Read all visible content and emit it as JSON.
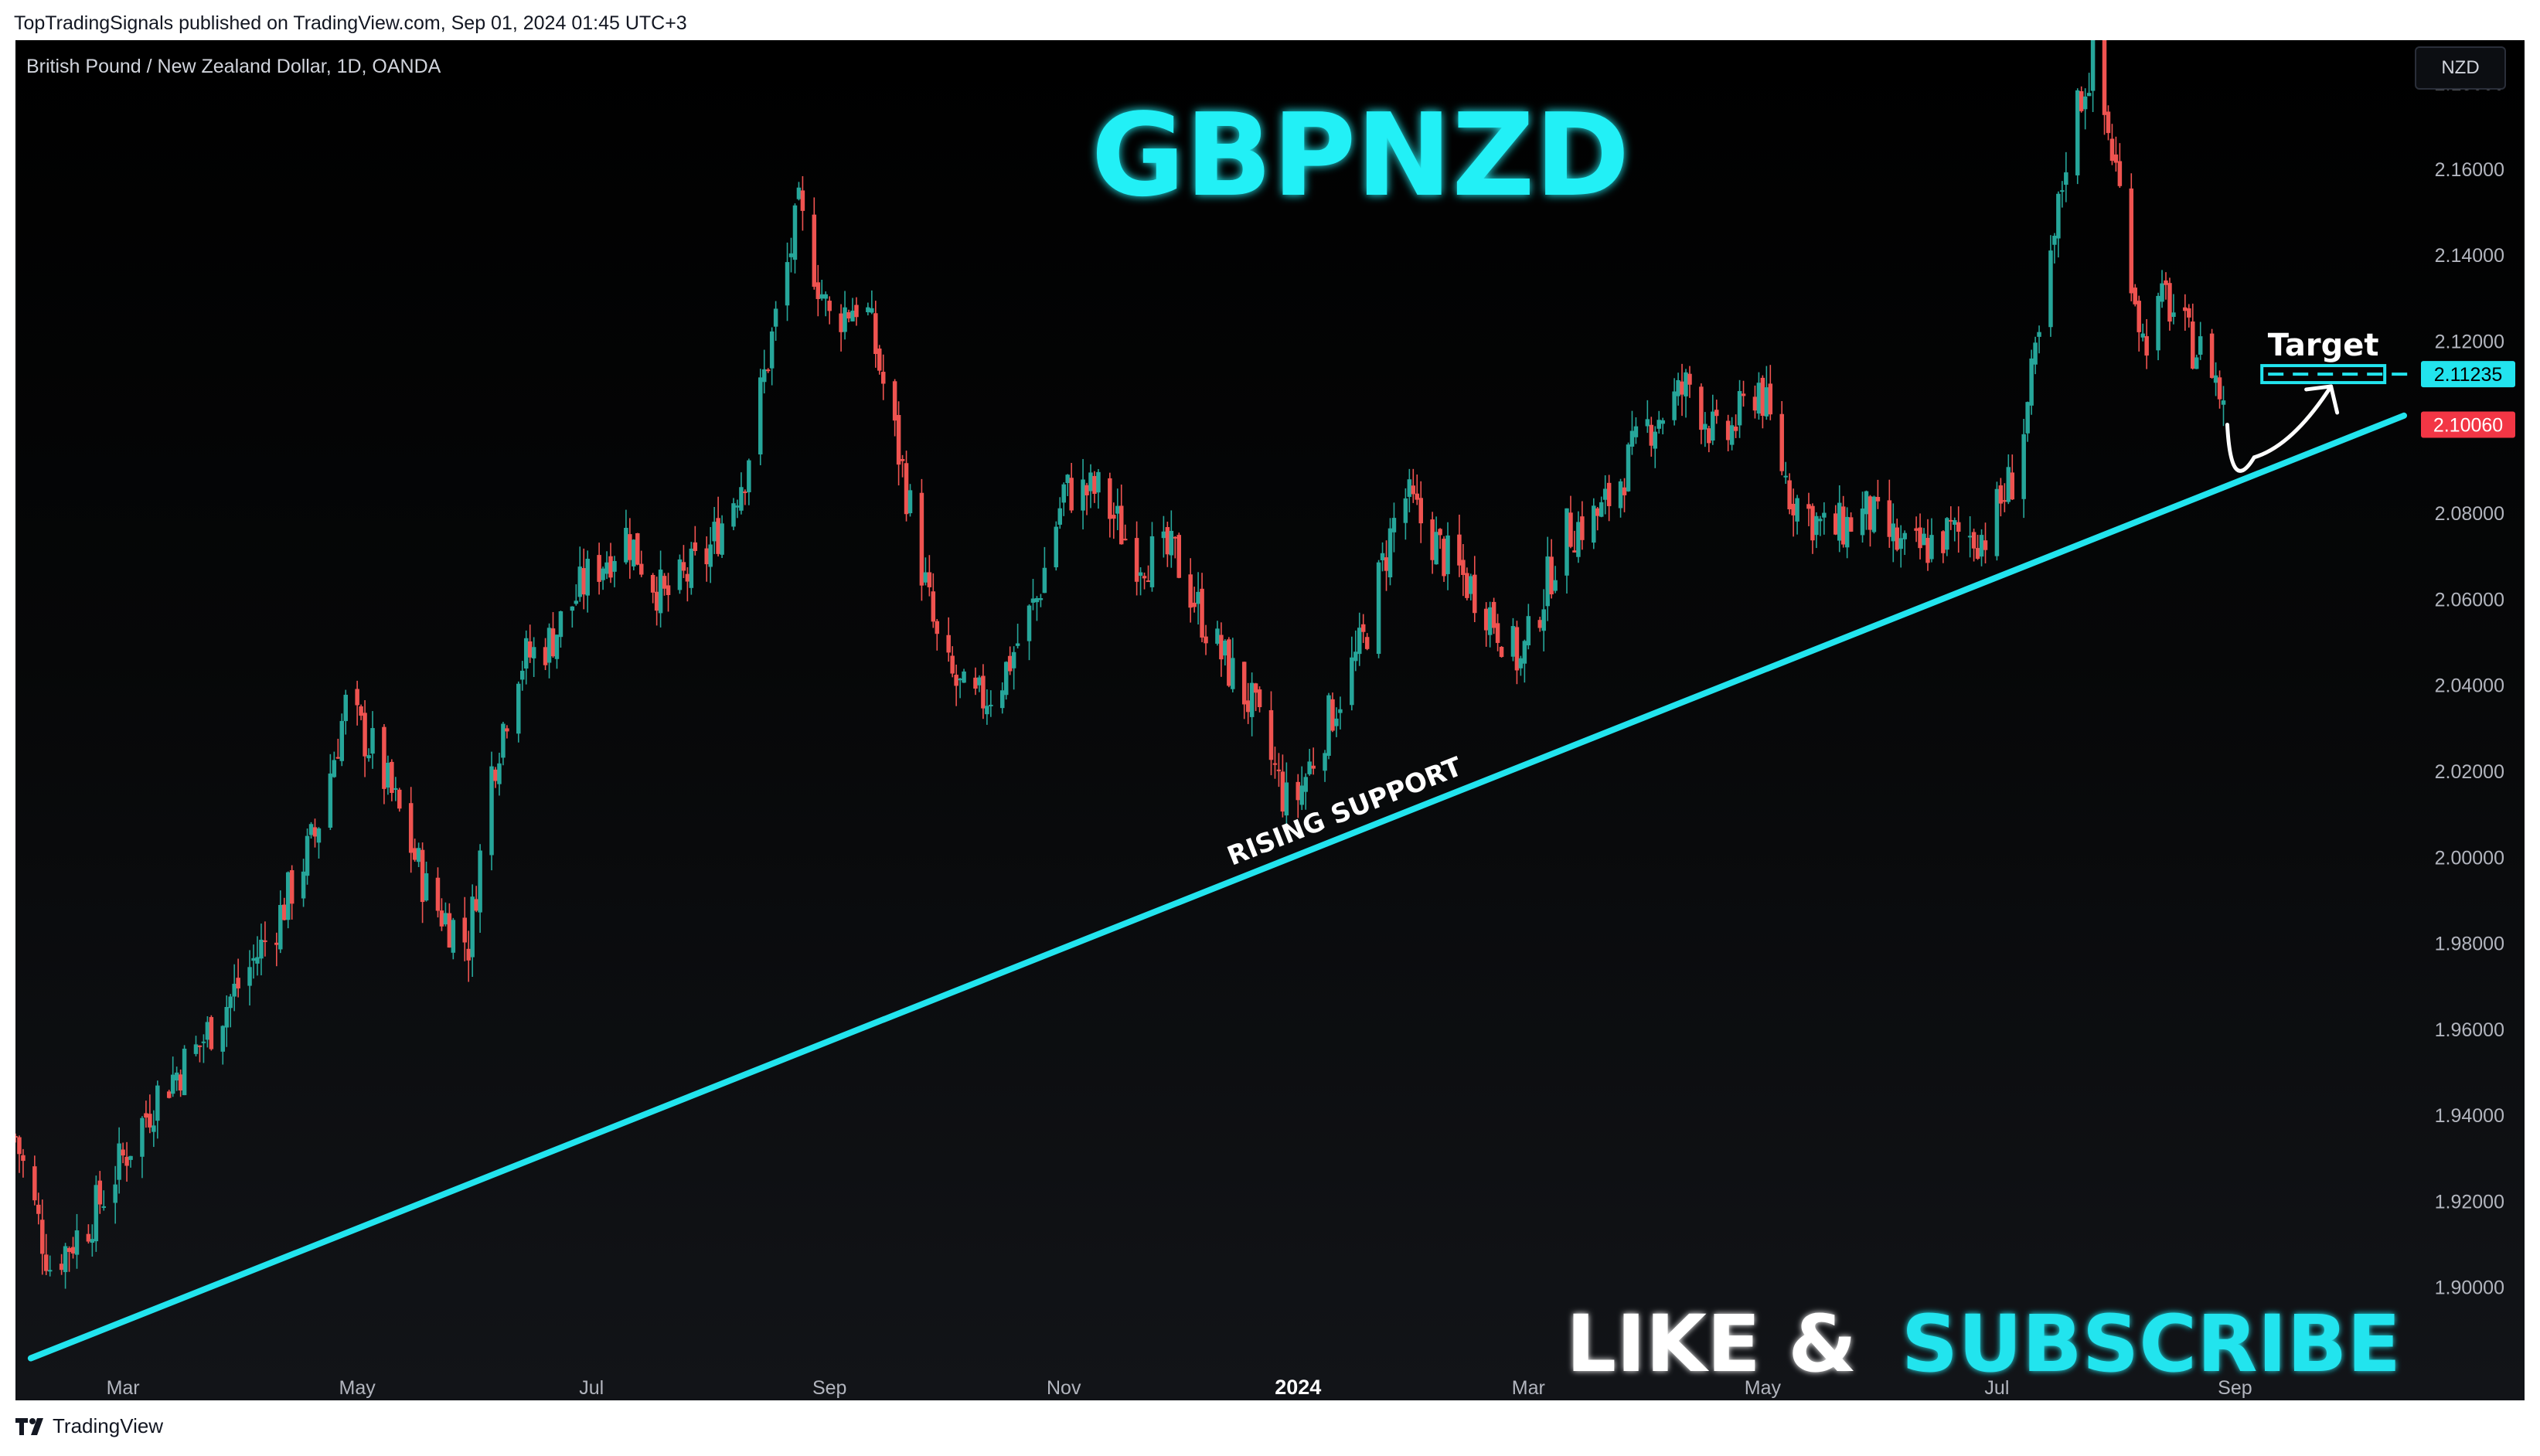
{
  "header": {
    "published_text": "TopTradingSignals published on TradingView.com, Sep 01, 2024 01:45 UTC+3"
  },
  "chart_header": {
    "symbol_text": "British Pound / New Zealand Dollar, 1D, OANDA",
    "currency_button": "NZD"
  },
  "annotations": {
    "title": "GBPNZD",
    "trendline_label": "RISING SUPPORT",
    "target_label": "Target",
    "cta_part1": "LIKE &",
    "cta_part2": "SUBSCRIBE"
  },
  "footer": {
    "brand": "TradingView"
  },
  "colors": {
    "background": "#000000",
    "up_candle": "#26a69a",
    "down_candle": "#ef5350",
    "accent_cyan": "#22e4ee",
    "axis_text": "#b2b5be",
    "current_price_badge": "#f23645",
    "target_badge": "#22e4ee"
  },
  "chart_data": {
    "type": "candlestick",
    "title": "GBPNZD",
    "symbol": "British Pound / New Zealand Dollar",
    "interval": "1D",
    "source": "OANDA",
    "ylim": [
      1.88,
      2.19
    ],
    "y_ticks": [
      1.9,
      1.92,
      1.94,
      1.96,
      1.98,
      2.0,
      2.02,
      2.04,
      2.06,
      2.08,
      2.1,
      2.12,
      2.14,
      2.16,
      2.18
    ],
    "y_tick_labels": [
      "1.90000",
      "1.92000",
      "1.94000",
      "1.96000",
      "1.98000",
      "2.00000",
      "2.02000",
      "2.04000",
      "2.06000",
      "2.08000",
      "2.10000",
      "2.12000",
      "2.14000",
      "2.16000",
      "2.18000"
    ],
    "x_range": [
      "2023-02-01",
      "2024-10-15"
    ],
    "x_ticks": [
      {
        "date": "2023-03-01",
        "label": "Mar"
      },
      {
        "date": "2023-05-01",
        "label": "May"
      },
      {
        "date": "2023-07-01",
        "label": "Jul"
      },
      {
        "date": "2023-09-01",
        "label": "Sep"
      },
      {
        "date": "2023-11-01",
        "label": "Nov"
      },
      {
        "date": "2024-01-01",
        "label": "2024"
      },
      {
        "date": "2024-03-01",
        "label": "Mar"
      },
      {
        "date": "2024-05-01",
        "label": "May"
      },
      {
        "date": "2024-07-01",
        "label": "Jul"
      },
      {
        "date": "2024-09-01",
        "label": "Sep"
      }
    ],
    "price_path": [
      {
        "date": "2023-02-01",
        "close": 1.935
      },
      {
        "date": "2023-02-10",
        "close": 1.905
      },
      {
        "date": "2023-02-20",
        "close": 1.915
      },
      {
        "date": "2023-03-01",
        "close": 1.93
      },
      {
        "date": "2023-03-10",
        "close": 1.945
      },
      {
        "date": "2023-03-20",
        "close": 1.955
      },
      {
        "date": "2023-03-31",
        "close": 1.97
      },
      {
        "date": "2023-04-10",
        "close": 1.985
      },
      {
        "date": "2023-04-20",
        "close": 2.005
      },
      {
        "date": "2023-04-28",
        "close": 2.035
      },
      {
        "date": "2023-05-05",
        "close": 2.025
      },
      {
        "date": "2023-05-12",
        "close": 2.01
      },
      {
        "date": "2023-05-20",
        "close": 1.99
      },
      {
        "date": "2023-05-30",
        "close": 1.98
      },
      {
        "date": "2023-06-05",
        "close": 2.02
      },
      {
        "date": "2023-06-12",
        "close": 2.045
      },
      {
        "date": "2023-06-20",
        "close": 2.05
      },
      {
        "date": "2023-06-30",
        "close": 2.065
      },
      {
        "date": "2023-07-10",
        "close": 2.075
      },
      {
        "date": "2023-07-20",
        "close": 2.06
      },
      {
        "date": "2023-07-31",
        "close": 2.07
      },
      {
        "date": "2023-08-10",
        "close": 2.09
      },
      {
        "date": "2023-08-18",
        "close": 2.125
      },
      {
        "date": "2023-08-24",
        "close": 2.15
      },
      {
        "date": "2023-09-01",
        "close": 2.125
      },
      {
        "date": "2023-09-10",
        "close": 2.13
      },
      {
        "date": "2023-09-20",
        "close": 2.09
      },
      {
        "date": "2023-09-30",
        "close": 2.045
      },
      {
        "date": "2023-10-08",
        "close": 2.035
      },
      {
        "date": "2023-10-15",
        "close": 2.04
      },
      {
        "date": "2023-10-25",
        "close": 2.06
      },
      {
        "date": "2023-11-01",
        "close": 2.085
      },
      {
        "date": "2023-11-10",
        "close": 2.085
      },
      {
        "date": "2023-11-20",
        "close": 2.07
      },
      {
        "date": "2023-11-30",
        "close": 2.07
      },
      {
        "date": "2023-12-10",
        "close": 2.05
      },
      {
        "date": "2023-12-20",
        "close": 2.035
      },
      {
        "date": "2023-12-30",
        "close": 2.01
      },
      {
        "date": "2024-01-08",
        "close": 2.03
      },
      {
        "date": "2024-01-18",
        "close": 2.05
      },
      {
        "date": "2024-01-28",
        "close": 2.085
      },
      {
        "date": "2024-02-08",
        "close": 2.07
      },
      {
        "date": "2024-02-18",
        "close": 2.06
      },
      {
        "date": "2024-02-28",
        "close": 2.045
      },
      {
        "date": "2024-03-10",
        "close": 2.075
      },
      {
        "date": "2024-03-20",
        "close": 2.08
      },
      {
        "date": "2024-04-01",
        "close": 2.1
      },
      {
        "date": "2024-04-12",
        "close": 2.11
      },
      {
        "date": "2024-04-20",
        "close": 2.095
      },
      {
        "date": "2024-04-30",
        "close": 2.11
      },
      {
        "date": "2024-05-08",
        "close": 2.085
      },
      {
        "date": "2024-05-18",
        "close": 2.075
      },
      {
        "date": "2024-05-28",
        "close": 2.08
      },
      {
        "date": "2024-06-08",
        "close": 2.07
      },
      {
        "date": "2024-06-18",
        "close": 2.075
      },
      {
        "date": "2024-06-28",
        "close": 2.075
      },
      {
        "date": "2024-07-06",
        "close": 2.09
      },
      {
        "date": "2024-07-14",
        "close": 2.13
      },
      {
        "date": "2024-07-20",
        "close": 2.17
      },
      {
        "date": "2024-07-26",
        "close": 2.185
      },
      {
        "date": "2024-08-01",
        "close": 2.16
      },
      {
        "date": "2024-08-08",
        "close": 2.12
      },
      {
        "date": "2024-08-14",
        "close": 2.13
      },
      {
        "date": "2024-08-20",
        "close": 2.12
      },
      {
        "date": "2024-08-26",
        "close": 2.115
      },
      {
        "date": "2024-08-30",
        "close": 2.1006
      }
    ],
    "trendline": {
      "label": "RISING SUPPORT",
      "start": {
        "date": "2023-02-05",
        "price": 1.8835
      },
      "end": {
        "date": "2024-10-15",
        "price": 2.1027
      }
    },
    "target_zone": {
      "label": "Target",
      "price": 2.11235,
      "date_from": "2024-09-08",
      "date_to": "2024-10-10"
    },
    "projection_path": [
      {
        "date": "2024-08-30",
        "price": 2.1006
      },
      {
        "date": "2024-09-06",
        "price": 2.093
      },
      {
        "date": "2024-09-16",
        "price": 2.0975
      },
      {
        "date": "2024-09-26",
        "price": 2.1095
      }
    ],
    "price_labels": [
      {
        "role": "target",
        "value": "2.11235",
        "price": 2.11235
      },
      {
        "role": "last",
        "value": "2.10060",
        "price": 2.1006
      }
    ]
  }
}
